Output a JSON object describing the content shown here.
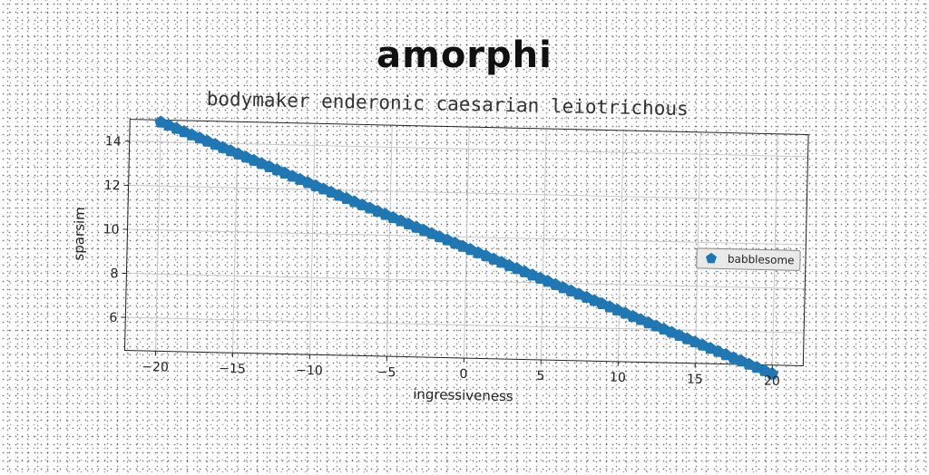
{
  "chart_data": {
    "type": "scatter",
    "title": "amorphi",
    "subtitle": "bodymaker enderonic caesarian leiotrichous",
    "xlabel": "ingressiveness",
    "ylabel": "sparsim",
    "xlim": [
      -22.0,
      22.0
    ],
    "ylim": [
      4.5,
      15.0
    ],
    "xticks": [
      -20,
      -15,
      -10,
      -5,
      0,
      5,
      10,
      15,
      20
    ],
    "yticks": [
      6,
      8,
      10,
      12,
      14
    ],
    "grid": true,
    "legend_position": "right",
    "series": [
      {
        "name": "babblesome",
        "color": "#1f77b4",
        "marker": "pentagon",
        "x_start": -20,
        "x_end": 20,
        "count": 80,
        "y_start": 14.9,
        "y_end": 4.1
      }
    ]
  }
}
